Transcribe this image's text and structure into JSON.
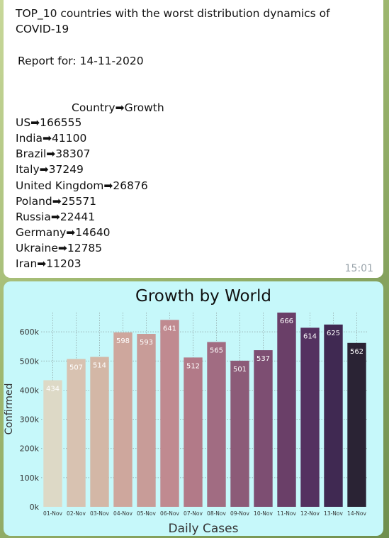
{
  "message": {
    "title_line1": "TOP_10 countries with the worst distribution dynamics of",
    "title_line2": "COVID-19",
    "report": "Report for: 14-11-2020",
    "table_header": "Country➡Growth",
    "rows": [
      "US➡166555",
      "India➡41100",
      "Brazil➡38307",
      "Italy➡37249",
      "United Kingdom➡26876",
      "Poland➡25571",
      "Russia➡22441",
      "Germany➡14640",
      "Ukraine➡12785",
      "Iran➡11203"
    ],
    "time": "15:01"
  },
  "chart_data": {
    "type": "bar",
    "title": "Growth by World",
    "xlabel": "Daily Cases",
    "ylabel": "Confirmed",
    "ylim": [
      0,
      700000
    ],
    "yticks": [
      0,
      100000,
      200000,
      300000,
      400000,
      500000,
      600000
    ],
    "ytick_labels": [
      "0k",
      "100k",
      "200k",
      "300k",
      "400k",
      "500k",
      "600k"
    ],
    "categories": [
      "01-Nov",
      "02-Nov",
      "03-Nov",
      "04-Nov",
      "05-Nov",
      "06-Nov",
      "07-Nov",
      "08-Nov",
      "09-Nov",
      "10-Nov",
      "11-Nov",
      "12-Nov",
      "13-Nov",
      "14-Nov"
    ],
    "values": [
      434000,
      507000,
      514000,
      598000,
      593000,
      641000,
      512000,
      565000,
      501000,
      537000,
      666000,
      614000,
      625000,
      562000
    ],
    "labels": [
      "434",
      "507",
      "514",
      "598",
      "593",
      "641",
      "512",
      "565",
      "501",
      "537",
      "666",
      "614",
      "625",
      "562"
    ],
    "colors": [
      "#ddd9c6",
      "#d8c2b1",
      "#d3b7a6",
      "#cea79d",
      "#c89c98",
      "#c08a90",
      "#b27a88",
      "#a16c82",
      "#8c5b78",
      "#7d4e72",
      "#6a3f68",
      "#543160",
      "#402952",
      "#2a2334"
    ],
    "grid": true
  }
}
